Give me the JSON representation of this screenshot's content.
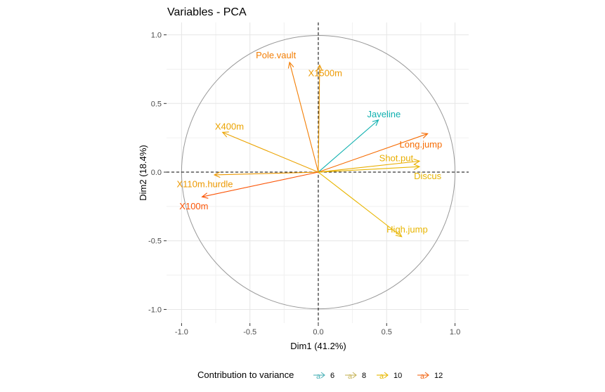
{
  "chart_data": {
    "type": "scatter",
    "subtype": "pca-variable-correlation-circle",
    "title": "Variables - PCA",
    "xlabel": "Dim1 (41.2%)",
    "ylabel": "Dim2 (18.4%)",
    "xlim": [
      -1.11,
      1.1
    ],
    "ylim": [
      -1.1,
      1.09
    ],
    "xticks": [
      -1.0,
      -0.5,
      0.0,
      0.5,
      1.0
    ],
    "yticks": [
      -1.0,
      -0.5,
      0.0,
      0.5,
      1.0
    ],
    "xtick_labels": [
      "-1.0",
      "-0.5",
      "0.0",
      "0.5",
      "1.0"
    ],
    "ytick_labels": [
      "-1.0",
      "-0.5",
      "0.0",
      "0.5",
      "1.0"
    ],
    "grid": true,
    "unit_circle": true,
    "reference_lines": [
      "x=0 dashed",
      "y=0 dashed"
    ],
    "variables": [
      {
        "name": "Pole.vault",
        "x": -0.21,
        "y": 0.8,
        "contrib": 11.0,
        "label_x": -0.31,
        "label_y": 0.85
      },
      {
        "name": "X1500m",
        "x": 0.01,
        "y": 0.78,
        "contrib": 10.2,
        "label_x": 0.05,
        "label_y": 0.72
      },
      {
        "name": "Javeline",
        "x": 0.44,
        "y": 0.38,
        "contrib": 6.4,
        "label_x": 0.48,
        "label_y": 0.42
      },
      {
        "name": "X400m",
        "x": -0.7,
        "y": 0.29,
        "contrib": 9.9,
        "label_x": -0.65,
        "label_y": 0.33
      },
      {
        "name": "Long.jump",
        "x": 0.8,
        "y": 0.28,
        "contrib": 11.5,
        "label_x": 0.75,
        "label_y": 0.2
      },
      {
        "name": "Shot.put",
        "x": 0.74,
        "y": 0.08,
        "contrib": 9.6,
        "label_x": 0.57,
        "label_y": 0.1
      },
      {
        "name": "Discus",
        "x": 0.74,
        "y": 0.04,
        "contrib": 9.4,
        "label_x": 0.8,
        "label_y": -0.03
      },
      {
        "name": "X110m.hurdle",
        "x": -0.76,
        "y": -0.02,
        "contrib": 10.2,
        "label_x": -0.83,
        "label_y": -0.09
      },
      {
        "name": "X100m",
        "x": -0.85,
        "y": -0.18,
        "contrib": 12.2,
        "label_x": -0.91,
        "label_y": -0.25
      },
      {
        "name": "High.jump",
        "x": 0.61,
        "y": -0.47,
        "contrib": 9.4,
        "label_x": 0.65,
        "label_y": -0.42
      }
    ],
    "legend": {
      "title": "Contribution to variance",
      "position": "bottom",
      "entries": [
        {
          "label": "6",
          "value": 6,
          "color": "#4FB3B9"
        },
        {
          "label": "8",
          "value": 8,
          "color": "#C8B65E"
        },
        {
          "label": "10",
          "value": 10,
          "color": "#E7B800"
        },
        {
          "label": "12",
          "value": 12,
          "color": "#F26A1B"
        }
      ]
    },
    "gradient": {
      "low": "#00AFBB",
      "mid": "#E7B800",
      "high": "#FC4E07",
      "range": [
        6.2,
        12.4
      ],
      "midpoint": 9.3
    }
  }
}
